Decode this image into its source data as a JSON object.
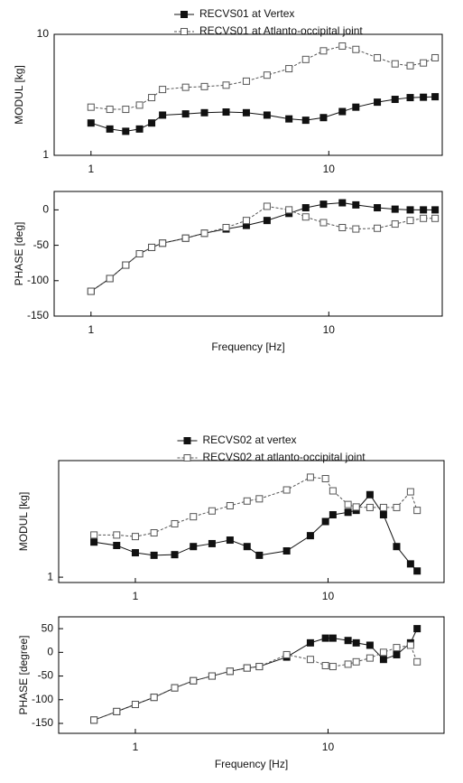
{
  "chart_data": [
    {
      "type": "line",
      "ylabel": "MODUL [kg]",
      "xlog": true,
      "ylog": true,
      "legend": "top",
      "xlim": [
        0.7,
        30
      ],
      "xticks": [
        1,
        10
      ],
      "ylim": [
        1,
        10
      ],
      "yticks": [
        1,
        10
      ],
      "x": [
        1,
        1.2,
        1.4,
        1.6,
        1.8,
        2,
        2.5,
        3,
        3.7,
        4.5,
        5.5,
        6.8,
        8,
        9.5,
        11.4,
        13,
        16,
        19,
        22,
        25,
        28
      ],
      "series": [
        {
          "name": "RECVS01 at Vertex",
          "color": "#111111",
          "filled": true,
          "values": [
            1.85,
            1.65,
            1.58,
            1.65,
            1.85,
            2.15,
            2.2,
            2.25,
            2.28,
            2.25,
            2.15,
            2.0,
            1.95,
            2.05,
            2.3,
            2.5,
            2.75,
            2.9,
            3.0,
            3.02,
            3.05
          ]
        },
        {
          "name": "RECVS01 at Atlanto-occipital joint",
          "color": "#555555",
          "filled": false,
          "values": [
            2.5,
            2.4,
            2.4,
            2.6,
            3.0,
            3.5,
            3.65,
            3.7,
            3.8,
            4.1,
            4.6,
            5.2,
            6.2,
            7.3,
            8.0,
            7.5,
            6.4,
            5.7,
            5.5,
            5.8,
            6.4
          ]
        }
      ]
    },
    {
      "type": "line",
      "ylabel": "PHASE [deg]",
      "xlabel": "Frequency [Hz]",
      "xlog": true,
      "ylog": false,
      "xlim": [
        0.7,
        30
      ],
      "xticks": [
        1,
        10
      ],
      "ylim": [
        -150,
        26
      ],
      "yticks": [
        -150,
        -100,
        -50,
        0
      ],
      "x": [
        1,
        1.2,
        1.4,
        1.6,
        1.8,
        2,
        2.5,
        3,
        3.7,
        4.5,
        5.5,
        6.8,
        8,
        9.5,
        11.4,
        13,
        16,
        19,
        22,
        25,
        28
      ],
      "series": [
        {
          "name": "RECVS01 at Vertex",
          "color": "#111111",
          "filled": true,
          "values": [
            -115,
            -97,
            -78,
            -62,
            -53,
            -47,
            -40,
            -33,
            -27,
            -22,
            -15,
            -5,
            3,
            8,
            10,
            7,
            3,
            1,
            0,
            0,
            0
          ]
        },
        {
          "name": "RECVS01 at Atlanto-occipital joint",
          "color": "#555555",
          "filled": false,
          "values": [
            -115,
            -97,
            -78,
            -62,
            -53,
            -47,
            -40,
            -33,
            -25,
            -15,
            5,
            0,
            -10,
            -18,
            -25,
            -27,
            -26,
            -20,
            -15,
            -12,
            -12
          ]
        }
      ]
    },
    {
      "type": "line",
      "ylabel": "MODUL [kg]",
      "xlog": true,
      "ylog": true,
      "legend": "top",
      "xlim": [
        0.4,
        40
      ],
      "xticks": [
        1,
        10
      ],
      "ylim": [
        0.9,
        10
      ],
      "yticks": [
        1
      ],
      "x": [
        0.61,
        0.8,
        1,
        1.25,
        1.6,
        2,
        2.5,
        3.1,
        3.8,
        4.4,
        6.1,
        8.1,
        9.7,
        10.6,
        12.7,
        14,
        16.5,
        19.4,
        22.7,
        26.8,
        29
      ],
      "series": [
        {
          "name": "RECVS02 at vertex",
          "color": "#111111",
          "filled": true,
          "values": [
            2.0,
            1.87,
            1.62,
            1.54,
            1.56,
            1.83,
            1.94,
            2.08,
            1.83,
            1.54,
            1.68,
            2.27,
            3.0,
            3.43,
            3.6,
            3.74,
            5.1,
            3.43,
            1.83,
            1.3,
            1.13
          ]
        },
        {
          "name": "RECVS02 at atlanto-occipital joint",
          "color": "#555555",
          "filled": false,
          "values": [
            2.3,
            2.3,
            2.23,
            2.4,
            2.87,
            3.3,
            3.7,
            4.1,
            4.5,
            4.7,
            5.6,
            7.2,
            7.0,
            5.5,
            4.2,
            4.0,
            3.96,
            3.96,
            3.96,
            5.4,
            3.74
          ]
        }
      ]
    },
    {
      "type": "line",
      "ylabel": "PHASE [degree]",
      "xlabel": "Frequency [Hz]",
      "xlog": true,
      "ylog": false,
      "xlim": [
        0.4,
        40
      ],
      "xticks": [
        1,
        10
      ],
      "ylim": [
        -171,
        75
      ],
      "yticks": [
        -150,
        -100,
        -50,
        0,
        50
      ],
      "x": [
        0.61,
        0.8,
        1,
        1.25,
        1.6,
        2,
        2.5,
        3.1,
        3.8,
        4.4,
        6.1,
        8.1,
        9.7,
        10.6,
        12.7,
        14,
        16.5,
        19.4,
        22.7,
        26.8,
        29
      ],
      "series": [
        {
          "name": "RECVS02 at vertex",
          "color": "#111111",
          "filled": true,
          "values": [
            -143,
            -125,
            -110,
            -95,
            -75,
            -60,
            -50,
            -40,
            -33,
            -30,
            -10,
            20,
            30,
            30,
            25,
            20,
            15,
            -15,
            -5,
            20,
            50
          ]
        },
        {
          "name": "RECVS02 at atlanto-occipital joint",
          "color": "#555555",
          "filled": false,
          "values": [
            -143,
            -125,
            -110,
            -95,
            -75,
            -60,
            -50,
            -40,
            -33,
            -30,
            -5,
            -15,
            -28,
            -30,
            -25,
            -20,
            -12,
            0,
            10,
            15,
            -20
          ]
        }
      ]
    }
  ]
}
